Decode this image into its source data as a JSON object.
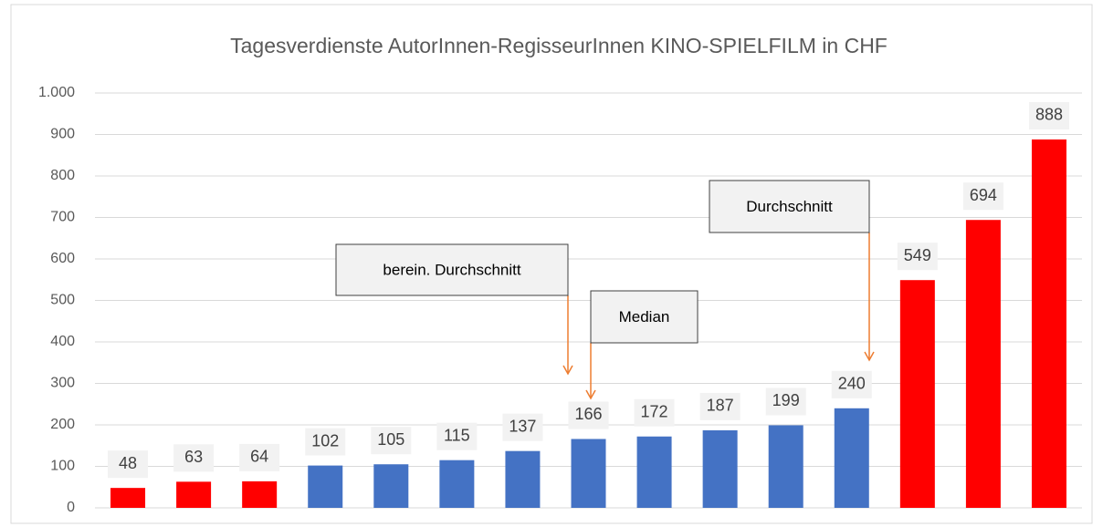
{
  "chart_data": {
    "type": "bar",
    "title": "Tagesverdienste AutorInnen-RegisseurInnen KINO-SPIELFILM in CHF",
    "categories": [
      null,
      null,
      null,
      null,
      null,
      null,
      null,
      null,
      null,
      null,
      null,
      null,
      null,
      null,
      null
    ],
    "values": [
      48,
      63,
      64,
      102,
      105,
      115,
      137,
      166,
      172,
      187,
      199,
      240,
      549,
      694,
      888
    ],
    "colors": [
      "#ff0000",
      "#ff0000",
      "#ff0000",
      "#4472c4",
      "#4472c4",
      "#4472c4",
      "#4472c4",
      "#4472c4",
      "#4472c4",
      "#4472c4",
      "#4472c4",
      "#4472c4",
      "#ff0000",
      "#ff0000",
      "#ff0000"
    ],
    "ylim": [
      0,
      1000
    ],
    "yticks": [
      0,
      100,
      200,
      300,
      400,
      500,
      600,
      700,
      800,
      900,
      {
        "value": 1000,
        "label": "1.000"
      }
    ],
    "grid": true,
    "annotations": [
      {
        "text": "berein. Durchschnitt"
      },
      {
        "text": "Median"
      },
      {
        "text": "Durchschnitt"
      }
    ]
  }
}
